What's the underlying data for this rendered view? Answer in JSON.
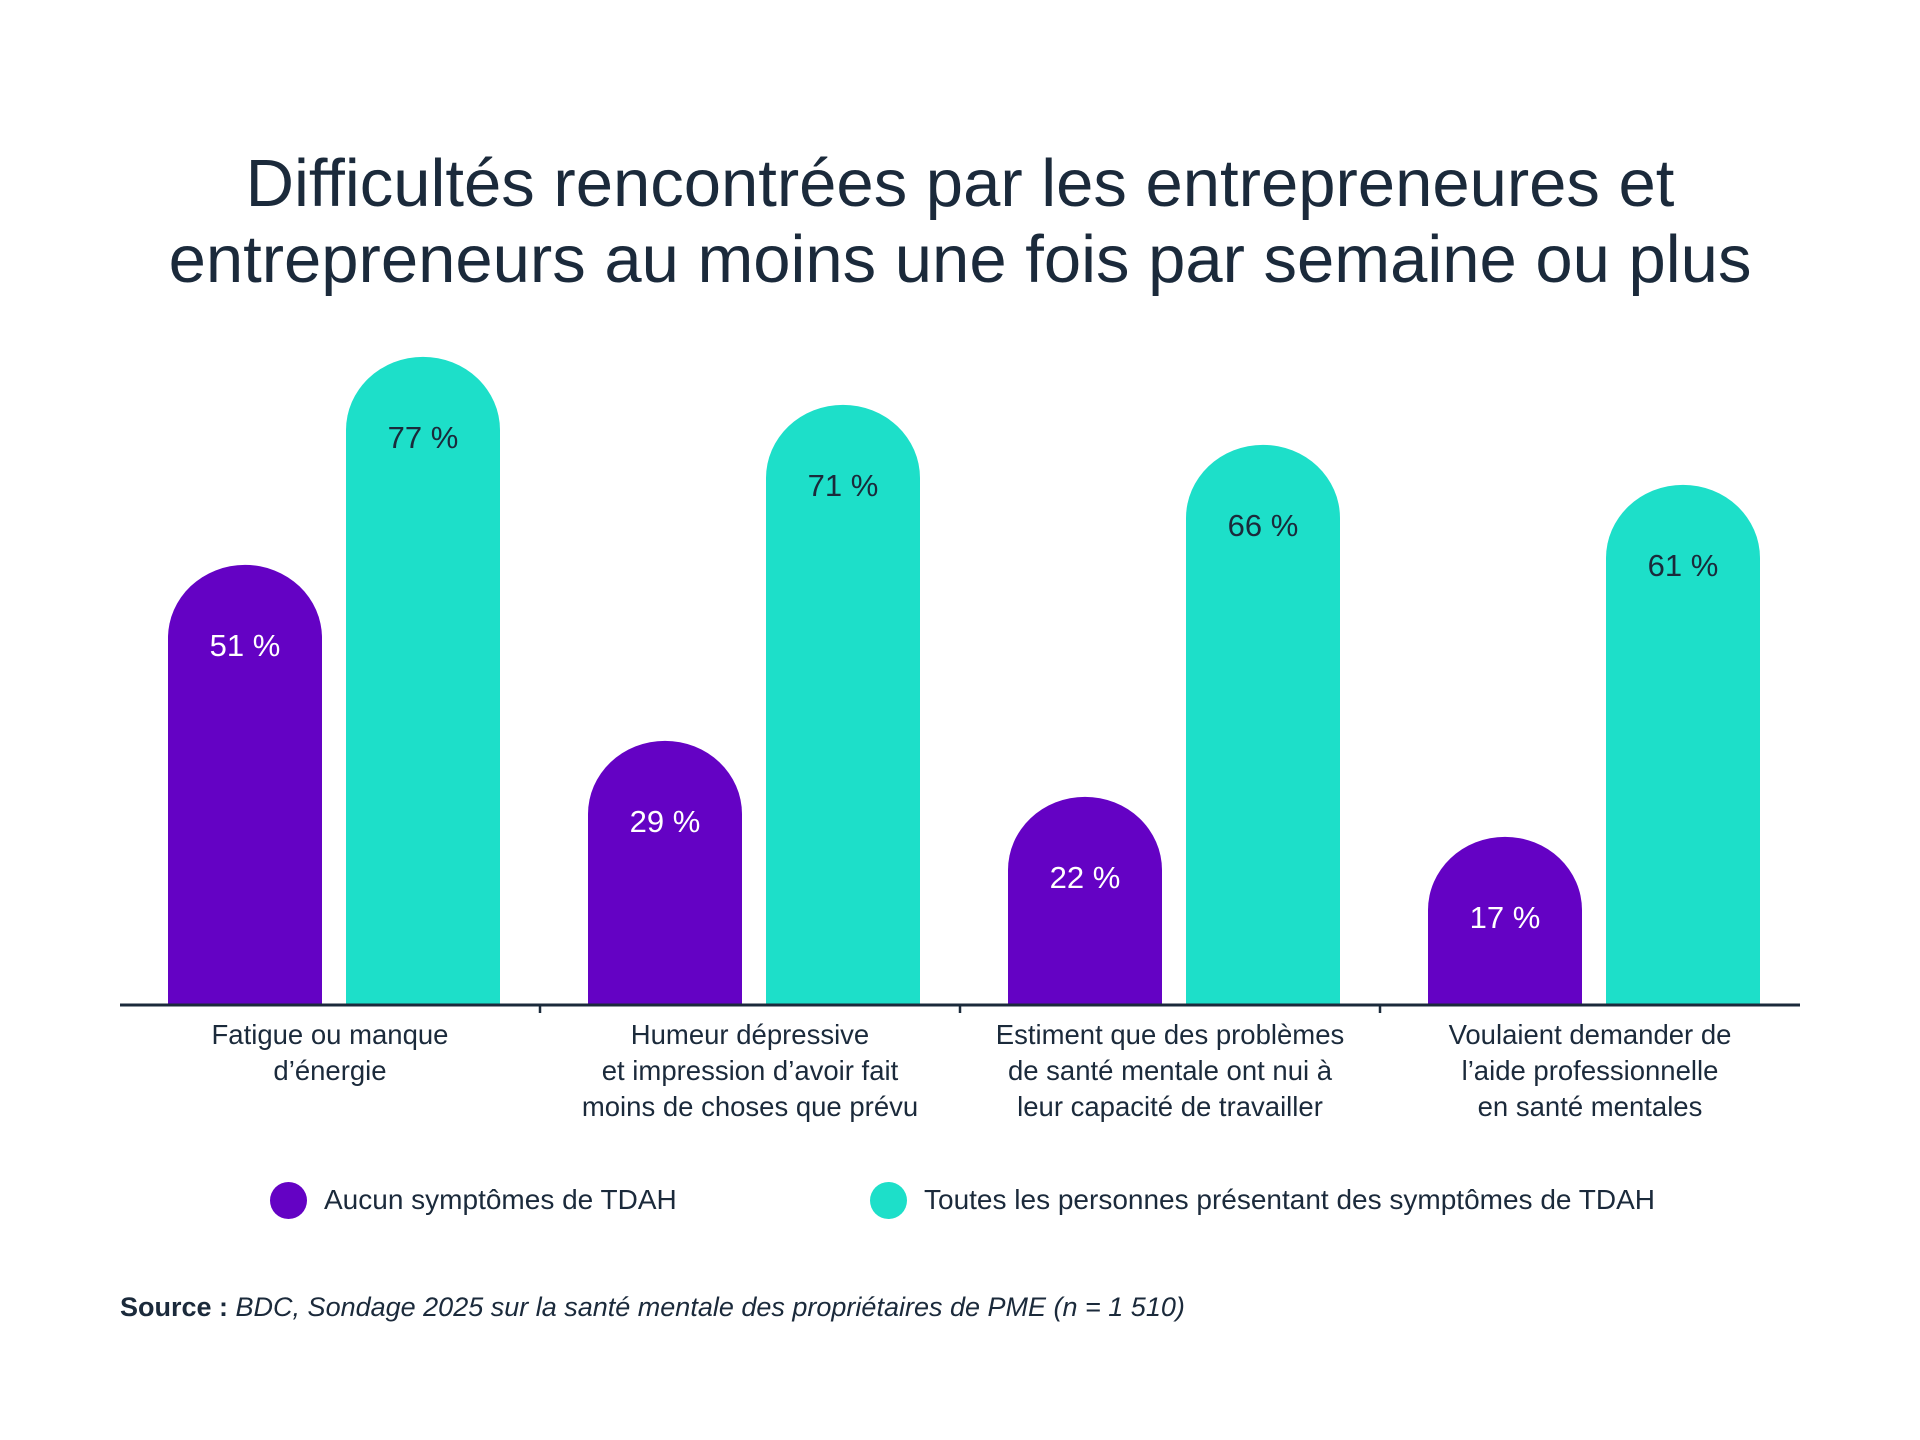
{
  "title_lines": [
    "Difficultés rencontrées par les entrepreneures et",
    "entrepreneurs au moins une fois par semaine ou plus"
  ],
  "colors": {
    "no_symptoms": "#6402c4",
    "with_symptoms": "#1ddfc9",
    "text": "#1b2a3b",
    "label_on_no_symptoms": "#ffffff",
    "label_on_with_symptoms": "#1b2a3b"
  },
  "legend": [
    {
      "label": "Aucun symptômes de TDAH",
      "series": "no_symptoms"
    },
    {
      "label": "Toutes les personnes présentant des symptômes de TDAH",
      "series": "with_symptoms"
    }
  ],
  "source": {
    "prefix": "Source :",
    "text": "BDC, Sondage 2025 sur la santé mentale des propriétaires de PME (n = 1 510)"
  },
  "chart_data": {
    "type": "bar",
    "title": "Difficultés rencontrées par les entrepreneures et entrepreneurs au moins une fois par semaine ou plus",
    "xlabel": "",
    "ylabel": "",
    "unit": "%",
    "ylim": [
      0,
      100
    ],
    "grid": false,
    "legend_position": "bottom",
    "categories": [
      [
        "Fatigue ou manque",
        "d’énergie"
      ],
      [
        "Humeur dépressive",
        "et impression d’avoir fait",
        "moins de choses que prévu"
      ],
      [
        "Estiment que des problèmes",
        "de santé mentale ont nui à",
        "leur capacité de travailler"
      ],
      [
        "Voulaient demander de",
        "l’aide professionnelle",
        "en santé mentales"
      ]
    ],
    "series": [
      {
        "name": "Aucun symptômes de TDAH",
        "key": "no_symptoms",
        "values": [
          51,
          29,
          22,
          17
        ],
        "labels": [
          "51 %",
          "29 %",
          "22 %",
          "17 %"
        ]
      },
      {
        "name": "Toutes les personnes présentant des symptômes de TDAH",
        "key": "with_symptoms",
        "values": [
          77,
          71,
          66,
          61
        ],
        "labels": [
          "77 %",
          "71 %",
          "66 %",
          "61 %"
        ]
      }
    ]
  }
}
